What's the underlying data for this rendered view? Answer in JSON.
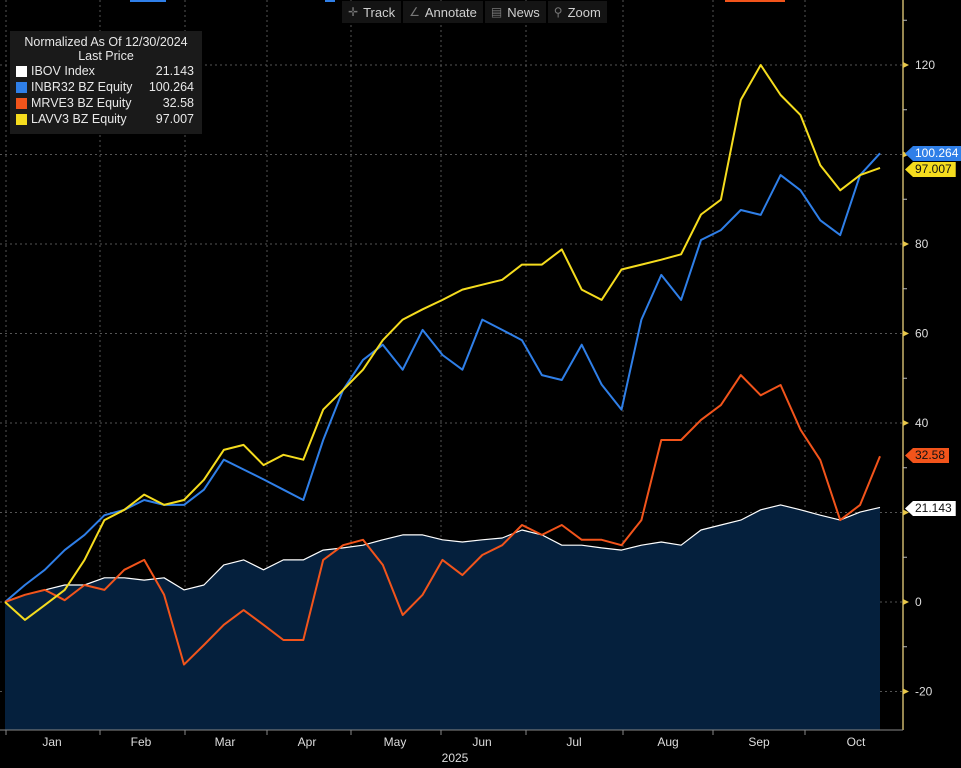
{
  "toolbar": {
    "track": "Track",
    "annotate": "Annotate",
    "news": "News",
    "zoom": "Zoom"
  },
  "legend": {
    "title": "Normalized As Of 12/30/2024",
    "subtitle": "Last Price"
  },
  "chart_data": {
    "type": "line",
    "title": "Normalized As Of 12/30/2024",
    "subtitle": "Last Price",
    "xlabel": "2025",
    "ylabel": "",
    "x_range": [
      "2024-12-30",
      "2025-10-24"
    ],
    "x_ticks": [
      "Jan",
      "Feb",
      "Mar",
      "Apr",
      "May",
      "Jun",
      "Jul",
      "Aug",
      "Sep",
      "Oct"
    ],
    "y_ticks": [
      120,
      100,
      80,
      60,
      40,
      20,
      0,
      -20
    ],
    "y_tick_labels": [
      "120",
      "80",
      "60",
      "40",
      "0",
      "-20"
    ],
    "ylim": [
      -28,
      132
    ],
    "grid": true,
    "legend_position": "top-left",
    "series": [
      {
        "name": "IBOV Index",
        "last": "21.143",
        "color": "#ffffff",
        "area": true,
        "values": [
          0,
          1.6,
          2.7,
          3.8,
          3.8,
          5.4,
          5.4,
          4.9,
          5.4,
          2.7,
          3.8,
          8.3,
          9.4,
          7.2,
          9.4,
          9.4,
          11.6,
          12.1,
          12.7,
          13.9,
          15,
          15,
          13.9,
          13.4,
          13.9,
          14.3,
          16.1,
          15,
          12.7,
          12.7,
          12.1,
          11.6,
          12.7,
          13.4,
          12.7,
          16.1,
          17.2,
          18.3,
          20.6,
          21.7,
          20.6,
          19.4,
          18.3,
          20.1,
          21.143
        ]
      },
      {
        "name": "INBR32 BZ Equity",
        "last": "100.264",
        "color": "#2f7fe8",
        "values": [
          0,
          3.8,
          7.2,
          11.6,
          15,
          19.4,
          20.6,
          22.8,
          21.7,
          21.7,
          25.1,
          31.8,
          29.6,
          27.4,
          25.1,
          22.8,
          36.2,
          47.4,
          54.1,
          57.5,
          51.9,
          60.8,
          55.2,
          51.9,
          63.1,
          60.8,
          58.5,
          50.7,
          49.6,
          57.5,
          48.6,
          43,
          63.1,
          73.1,
          67.5,
          80.9,
          83.1,
          87.6,
          86.5,
          95.4,
          92,
          85.3,
          82,
          95.4,
          100.264
        ]
      },
      {
        "name": "MRVE3 BZ Equity",
        "last": "32.58",
        "color": "#f2541b",
        "values": [
          0,
          1.6,
          2.7,
          0.4,
          3.8,
          2.7,
          7.2,
          9.4,
          1.6,
          -14,
          -9.6,
          -5.1,
          -1.8,
          -5.1,
          -8.5,
          -8.5,
          9.4,
          12.7,
          13.9,
          8.3,
          -2.9,
          1.6,
          9.4,
          6,
          10.5,
          12.7,
          17.2,
          15,
          17.2,
          13.9,
          13.9,
          12.7,
          18.3,
          36.2,
          36.2,
          40.7,
          44,
          50.7,
          46.2,
          48.5,
          38.5,
          31.7,
          18.3,
          21.7,
          32.58
        ]
      },
      {
        "name": "LAVV3 BZ Equity",
        "last": "97.007",
        "color": "#f5dc1e",
        "values": [
          0,
          -4,
          -0.7,
          2.7,
          9.4,
          18.3,
          20.6,
          24,
          21.7,
          22.8,
          27.3,
          34,
          35.1,
          30.6,
          32.9,
          31.8,
          43,
          47.4,
          51.9,
          58.5,
          63.1,
          65.4,
          67.5,
          69.8,
          70.9,
          72,
          75.4,
          75.4,
          78.8,
          69.8,
          67.5,
          74.3,
          75.4,
          76.5,
          77.7,
          86.6,
          89.9,
          112.2,
          120,
          113.3,
          108.8,
          97.6,
          92,
          95.4,
          97.007
        ]
      }
    ]
  }
}
